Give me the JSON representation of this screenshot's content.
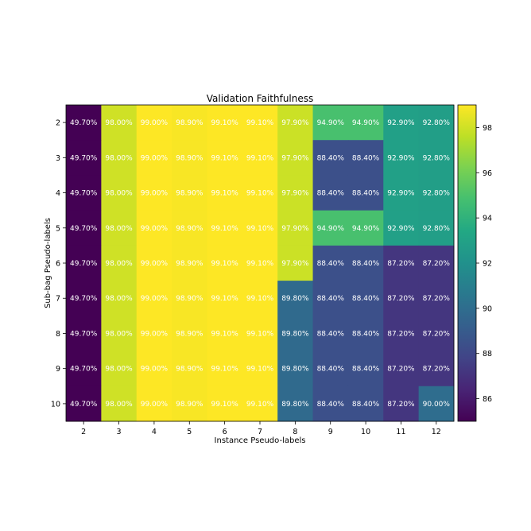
{
  "chart_data": {
    "type": "heatmap",
    "title": "Validation Faithfulness",
    "xlabel": "Instance Pseudo-labels",
    "ylabel": "Sub-bag Pseudo-labels",
    "x_categories": [
      "2",
      "3",
      "4",
      "5",
      "6",
      "7",
      "8",
      "9",
      "10",
      "11",
      "12"
    ],
    "y_categories": [
      "2",
      "3",
      "4",
      "5",
      "6",
      "7",
      "8",
      "9",
      "10"
    ],
    "colormap": "viridis",
    "color_range": [
      85,
      99
    ],
    "colorbar_ticks": [
      "86",
      "88",
      "90",
      "92",
      "94",
      "96",
      "98"
    ],
    "values": [
      [
        49.7,
        98.0,
        99.0,
        98.9,
        99.1,
        99.1,
        97.9,
        94.9,
        94.9,
        92.9,
        92.8
      ],
      [
        49.7,
        98.0,
        99.0,
        98.9,
        99.1,
        99.1,
        97.9,
        88.4,
        88.4,
        92.9,
        92.8
      ],
      [
        49.7,
        98.0,
        99.0,
        98.9,
        99.1,
        99.1,
        97.9,
        88.4,
        88.4,
        92.9,
        92.8
      ],
      [
        49.7,
        98.0,
        99.0,
        98.9,
        99.1,
        99.1,
        97.9,
        94.9,
        94.9,
        92.9,
        92.8
      ],
      [
        49.7,
        98.0,
        99.0,
        98.9,
        99.1,
        99.1,
        97.9,
        88.4,
        88.4,
        87.2,
        87.2
      ],
      [
        49.7,
        98.0,
        99.0,
        98.9,
        99.1,
        99.1,
        89.8,
        88.4,
        88.4,
        87.2,
        87.2
      ],
      [
        49.7,
        98.0,
        99.0,
        98.9,
        99.1,
        99.1,
        89.8,
        88.4,
        88.4,
        87.2,
        87.2
      ],
      [
        49.7,
        98.0,
        99.0,
        98.9,
        99.1,
        99.1,
        89.8,
        88.4,
        88.4,
        87.2,
        87.2
      ],
      [
        49.7,
        98.0,
        99.0,
        98.9,
        99.1,
        99.1,
        89.8,
        88.4,
        88.4,
        87.2,
        90.0
      ]
    ],
    "labels": [
      [
        "49.70%",
        "98.00%",
        "99.00%",
        "98.90%",
        "99.10%",
        "99.10%",
        "97.90%",
        "94.90%",
        "94.90%",
        "92.90%",
        "92.80%"
      ],
      [
        "49.70%",
        "98.00%",
        "99.00%",
        "98.90%",
        "99.10%",
        "99.10%",
        "97.90%",
        "88.40%",
        "88.40%",
        "92.90%",
        "92.80%"
      ],
      [
        "49.70%",
        "98.00%",
        "99.00%",
        "98.90%",
        "99.10%",
        "99.10%",
        "97.90%",
        "88.40%",
        "88.40%",
        "92.90%",
        "92.80%"
      ],
      [
        "49.70%",
        "98.00%",
        "99.00%",
        "98.90%",
        "99.10%",
        "99.10%",
        "97.90%",
        "94.90%",
        "94.90%",
        "92.90%",
        "92.80%"
      ],
      [
        "49.70%",
        "98.00%",
        "99.00%",
        "98.90%",
        "99.10%",
        "99.10%",
        "97.90%",
        "88.40%",
        "88.40%",
        "87.20%",
        "87.20%"
      ],
      [
        "49.70%",
        "98.00%",
        "99.00%",
        "98.90%",
        "99.10%",
        "99.10%",
        "89.80%",
        "88.40%",
        "88.40%",
        "87.20%",
        "87.20%"
      ],
      [
        "49.70%",
        "98.00%",
        "99.00%",
        "98.90%",
        "99.10%",
        "99.10%",
        "89.80%",
        "88.40%",
        "88.40%",
        "87.20%",
        "87.20%"
      ],
      [
        "49.70%",
        "98.00%",
        "99.00%",
        "98.90%",
        "99.10%",
        "99.10%",
        "89.80%",
        "88.40%",
        "88.40%",
        "87.20%",
        "87.20%"
      ],
      [
        "49.70%",
        "98.00%",
        "99.00%",
        "98.90%",
        "99.10%",
        "99.10%",
        "89.80%",
        "88.40%",
        "88.40%",
        "87.20%",
        "90.00%"
      ]
    ]
  }
}
